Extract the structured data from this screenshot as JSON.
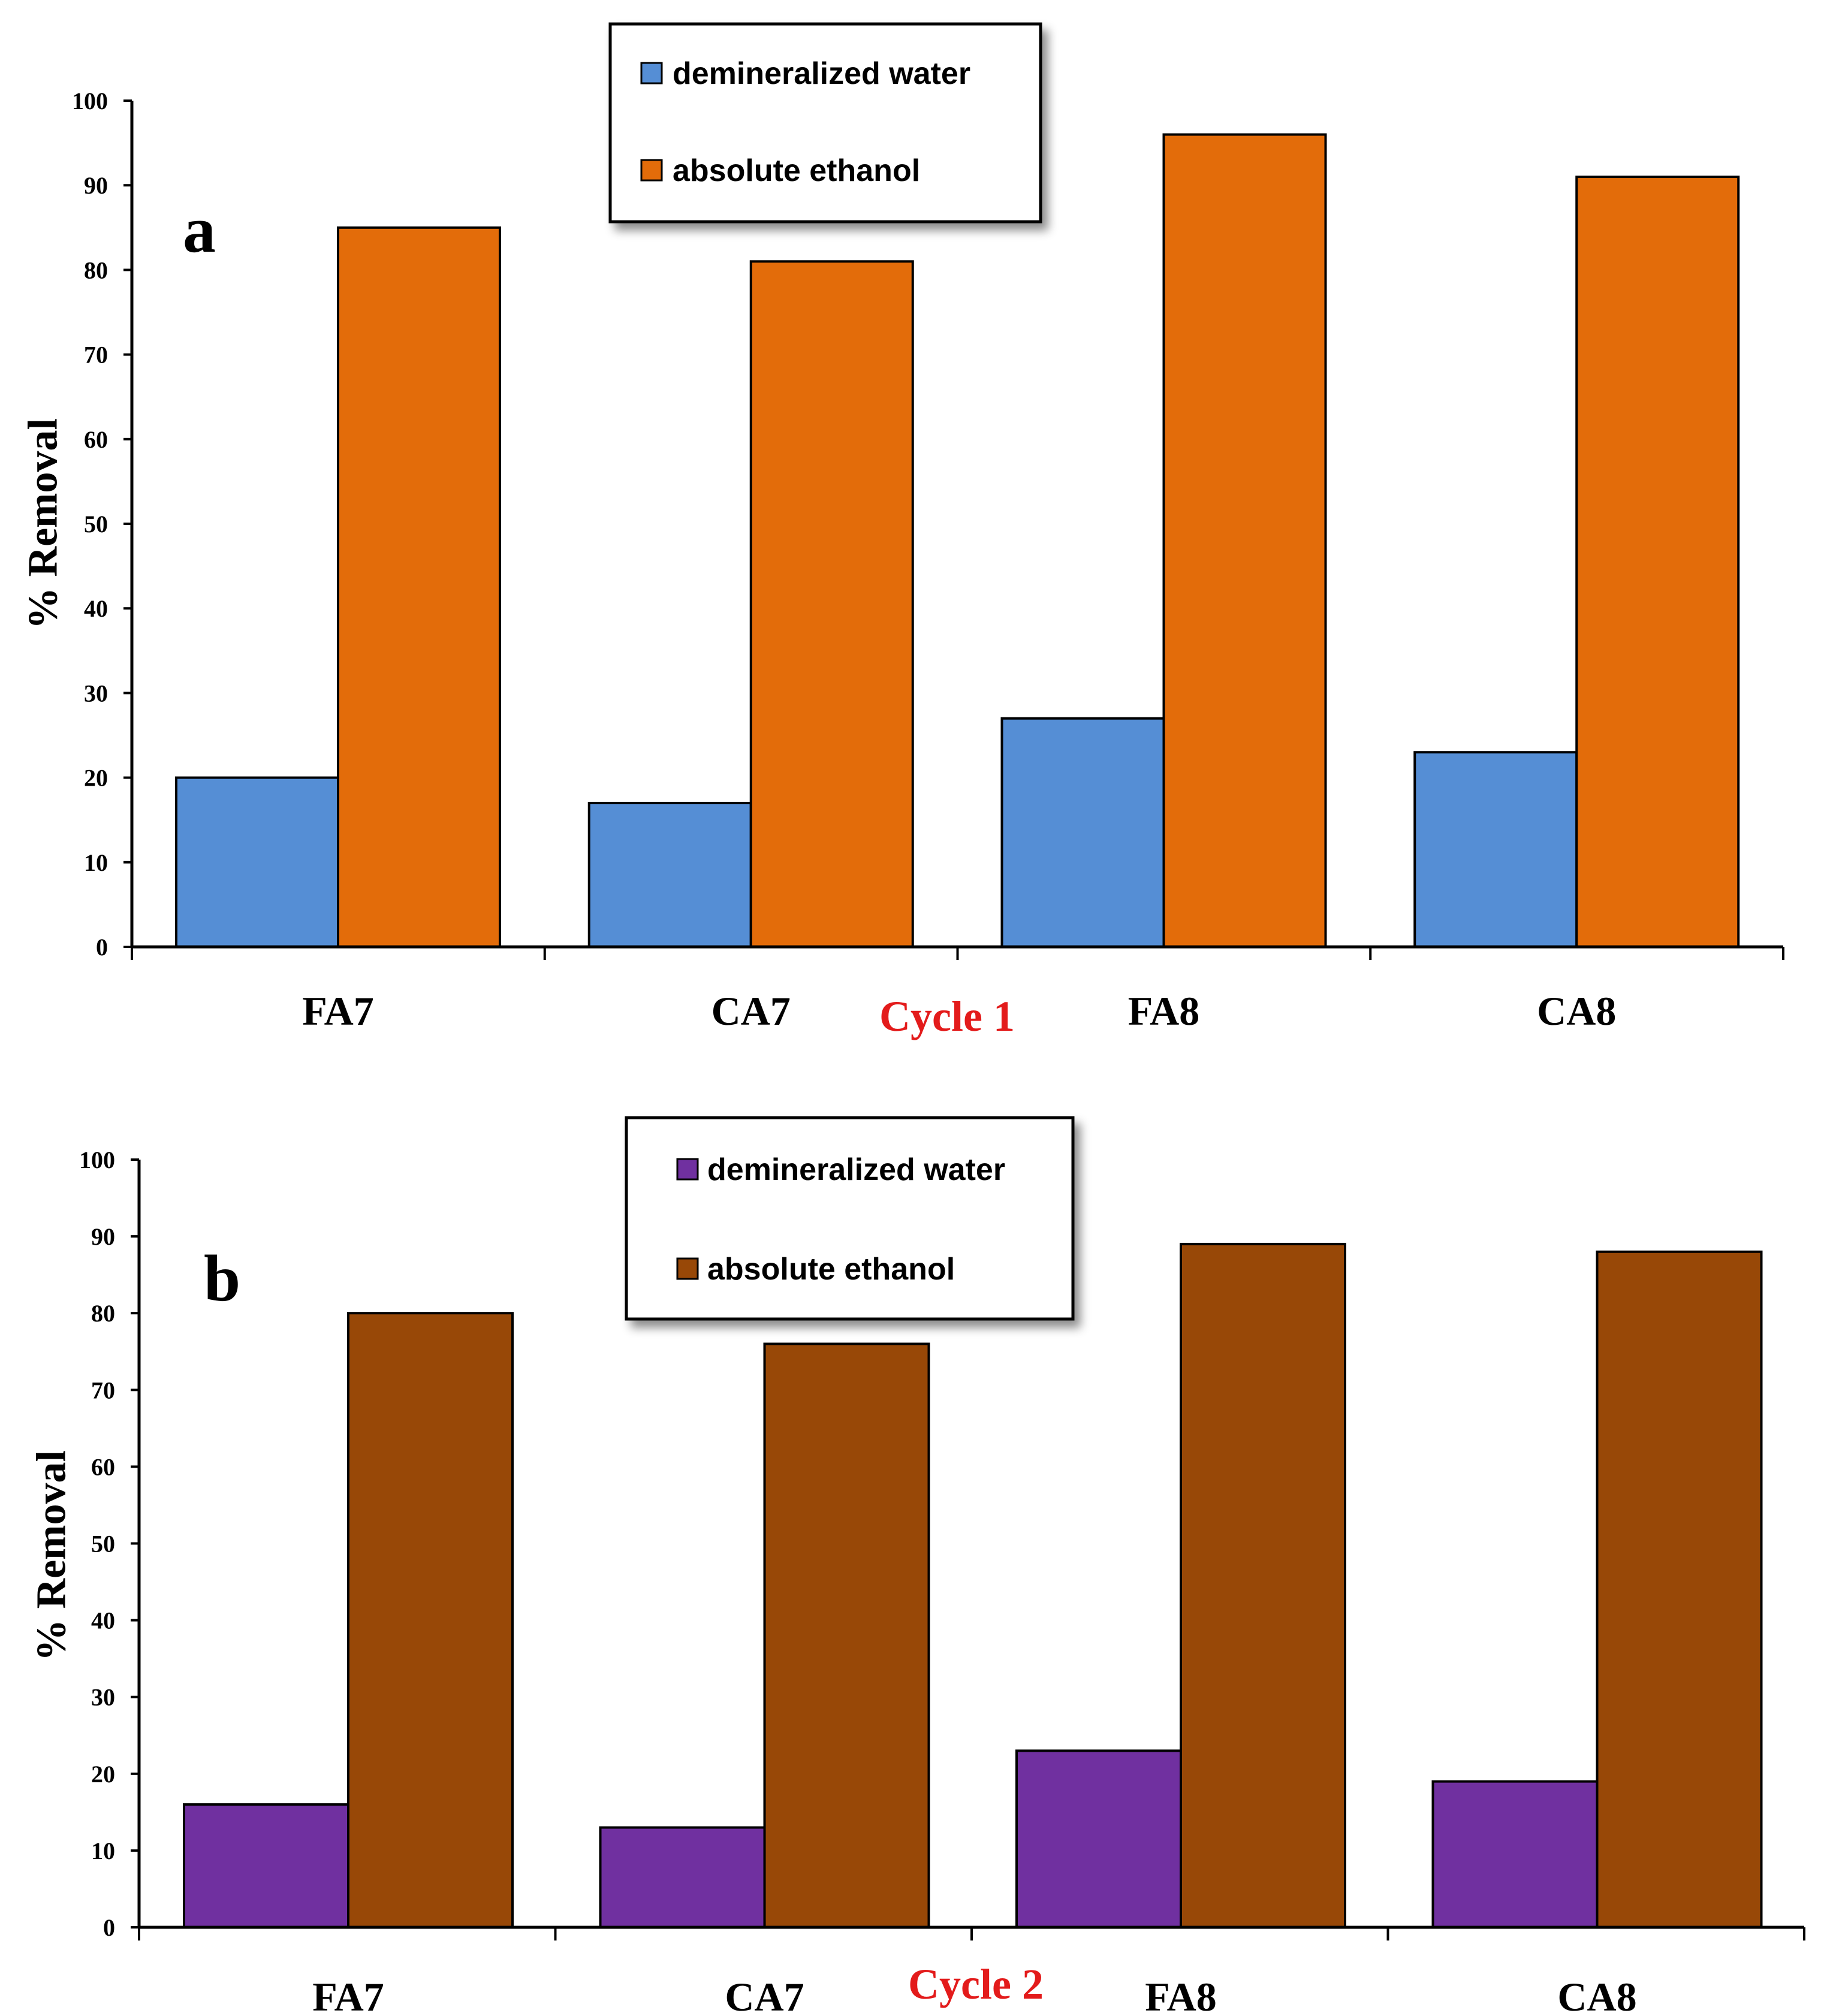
{
  "chart_data": [
    {
      "type": "bar",
      "panel": "a",
      "categories": [
        "FA7",
        "CA7",
        "FA8",
        "CA8"
      ],
      "series": [
        {
          "name": "demineralized water",
          "values": [
            20,
            17,
            27,
            23
          ],
          "color": "#558ED5"
        },
        {
          "name": "absolute ethanol",
          "values": [
            85,
            81,
            96,
            91
          ],
          "color": "#E36C0A"
        }
      ],
      "ylabel": "% Removal",
      "xlabel": "Cycle 1",
      "xlabel_color": "#E31B1B",
      "ylim": [
        0,
        100
      ],
      "yticks": [
        "0",
        "10",
        "20",
        "30",
        "40",
        "50",
        "60",
        "70",
        "80",
        "90",
        "100"
      ],
      "legend_position": "top-center"
    },
    {
      "type": "bar",
      "panel": "b",
      "categories": [
        "FA7",
        "CA7",
        "FA8",
        "CA8"
      ],
      "series": [
        {
          "name": "demineralized water",
          "values": [
            16,
            13,
            23,
            19
          ],
          "color": "#7030A0"
        },
        {
          "name": "absolute ethanol",
          "values": [
            80,
            76,
            89,
            88
          ],
          "color": "#984807"
        }
      ],
      "ylabel": "% Removal",
      "xlabel": "Cycle 2",
      "xlabel_color": "#E31B1B",
      "ylim": [
        0,
        100
      ],
      "yticks": [
        "0",
        "10",
        "20",
        "30",
        "40",
        "50",
        "60",
        "70",
        "80",
        "90",
        "100"
      ],
      "legend_position": "top-center"
    }
  ]
}
